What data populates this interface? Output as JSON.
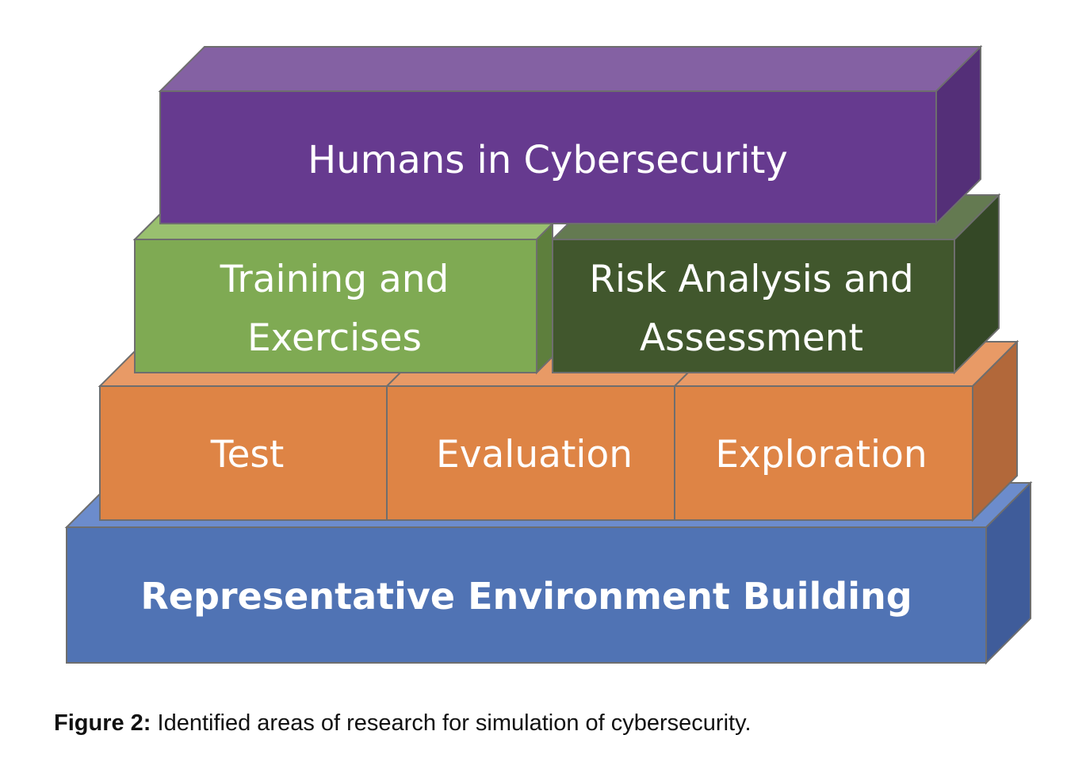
{
  "diagram": {
    "layers": {
      "humans": {
        "label": "Humans in Cybersecurity"
      },
      "training": {
        "line1": "Training and",
        "line2": "Exercises"
      },
      "risk": {
        "line1": "Risk Analysis and",
        "line2": "Assessment"
      },
      "test": {
        "label": "Test"
      },
      "evaluation": {
        "label": "Evaluation"
      },
      "exploration": {
        "label": "Exploration"
      },
      "base": {
        "label": "Representative Environment Building"
      }
    },
    "colors": {
      "purple_front": "#663a8f",
      "purple_top": "#8461a3",
      "purple_side": "#542f78",
      "light_green_front": "#7faa53",
      "light_green_top": "#99c06f",
      "dark_green_front": "#41572d",
      "dark_green_top": "#647a51",
      "dark_green_side": "#344826",
      "orange_front": "#de8445",
      "orange_top": "#e89a66",
      "orange_side": "#b2683a",
      "blue_front": "#5073b4",
      "blue_top": "#6c8ccc",
      "blue_side": "#3f5c9a",
      "edge": "#6e6e6e"
    }
  },
  "caption": {
    "label": "Figure 2:",
    "text": " Identified areas of research for simulation of cybersecurity."
  }
}
